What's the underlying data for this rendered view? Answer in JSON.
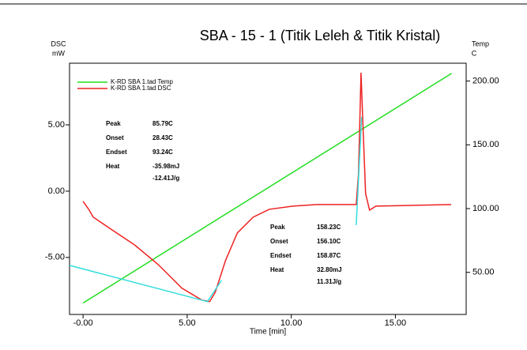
{
  "chart_data": {
    "type": "line",
    "title": "SBA - 15 - 1 (Titik Leleh & Titik Kristal)",
    "xlabel": "Time [min]",
    "ylabel": [
      "DSC",
      "mW"
    ],
    "y2label": [
      "Temp",
      "C"
    ],
    "xlim": [
      -0.65,
      18.4
    ],
    "ylim": [
      -9.3,
      9.65
    ],
    "y2lim": [
      17,
      214
    ],
    "xticks": [
      {
        "value": 0,
        "label": "-0.00"
      },
      {
        "value": 5,
        "label": "5.00"
      },
      {
        "value": 10,
        "label": "10.00"
      },
      {
        "value": 15,
        "label": "15.00"
      }
    ],
    "yticks": [
      {
        "value": 5,
        "label": "5.00"
      },
      {
        "value": 0,
        "label": "0.00"
      },
      {
        "value": -5,
        "label": "-5.00"
      }
    ],
    "y2ticks": [
      {
        "value": 200,
        "label": "200.00"
      },
      {
        "value": 150,
        "label": "150.00"
      },
      {
        "value": 100,
        "label": "100.00"
      },
      {
        "value": 50,
        "label": "50.00"
      }
    ],
    "legend": "upper left",
    "series": [
      {
        "name": "K-RD SBA 1.tad  Temp",
        "color": "#22dd22",
        "axis": "y2",
        "x": [
          0,
          17.7
        ],
        "values": [
          26,
          206
        ]
      },
      {
        "name": "K-RD SBA 1.tad  DSC",
        "color": "#ee2222",
        "x": [
          0,
          0.27,
          0.49,
          1.33,
          2.47,
          3.61,
          4.75,
          5.7,
          6.08,
          6.35,
          6.84,
          7.41,
          8.17,
          8.94,
          10.08,
          11.22,
          13.12,
          13.23,
          13.35,
          13.46,
          13.57,
          13.76,
          14.07,
          17.68
        ],
        "values": [
          -0.77,
          -1.37,
          -1.96,
          -2.86,
          -4.05,
          -5.54,
          -7.32,
          -8.21,
          -8.33,
          -7.62,
          -5.24,
          -3.15,
          -1.96,
          -1.37,
          -1.13,
          -1.01,
          -1.01,
          1.31,
          8.93,
          4.29,
          -0.18,
          -1.43,
          -1.13,
          -1.01
        ]
      },
      {
        "color": "#33dddd",
        "x": [
          -0.65,
          5.97,
          6.65
        ],
        "values": [
          -5.6,
          -8.33,
          -6.73
        ]
      },
      {
        "color": "#33dddd",
        "x": [
          13.12,
          13.38
        ],
        "values": [
          -2.56,
          5.6
        ]
      }
    ],
    "annotations": [
      {
        "rows": [
          {
            "label": "Peak",
            "value": "85.79C"
          },
          {
            "label": "Onset",
            "value": "28.43C"
          },
          {
            "label": "Endset",
            "value": "93.24C"
          },
          {
            "label": "Heat",
            "value": "-35.98mJ",
            "extra": "-12.41J/g"
          }
        ]
      },
      {
        "rows": [
          {
            "label": "Peak",
            "value": "158.23C"
          },
          {
            "label": "Onset",
            "value": "156.10C"
          },
          {
            "label": "Endset",
            "value": "158.87C"
          },
          {
            "label": "Heat",
            "value": "32.80mJ",
            "extra": "11.31J/g"
          }
        ]
      }
    ]
  }
}
